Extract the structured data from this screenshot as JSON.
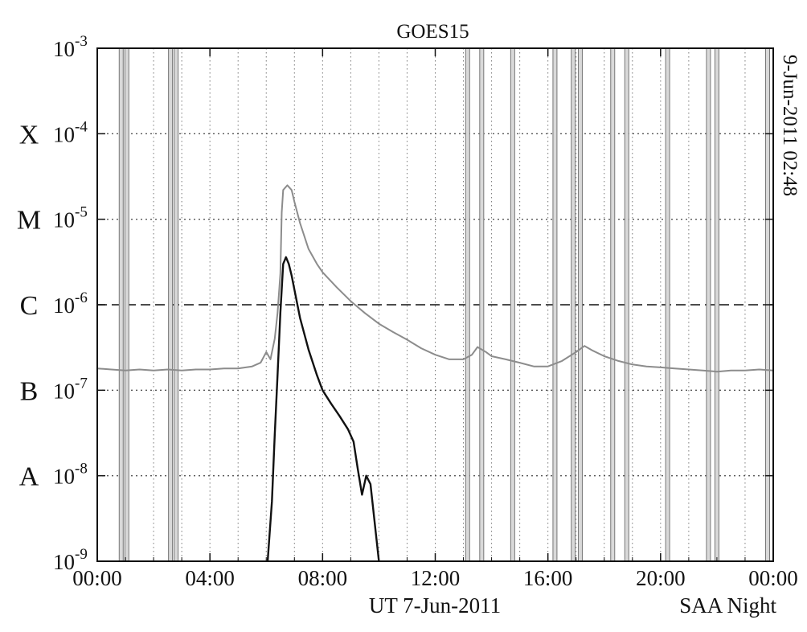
{
  "chart_data": {
    "type": "line",
    "title": "GOES15",
    "xlabel": "UT 7-Jun-2011",
    "footer_right": "SAA Night",
    "timestamp": "9-Jun-2011 02:48",
    "x_unit": "hours UT",
    "xlim": [
      0,
      24
    ],
    "ylim": [
      1e-09,
      0.001
    ],
    "yscale": "log",
    "grid": true,
    "x_ticks": [
      {
        "value": 0,
        "label": "00:00"
      },
      {
        "value": 4,
        "label": "04:00"
      },
      {
        "value": 8,
        "label": "08:00"
      },
      {
        "value": 12,
        "label": "12:00"
      },
      {
        "value": 16,
        "label": "16:00"
      },
      {
        "value": 20,
        "label": "20:00"
      },
      {
        "value": 24,
        "label": "00:00"
      }
    ],
    "y_ticks": [
      {
        "value": 0.001,
        "base": "10",
        "exp": "-3"
      },
      {
        "value": 0.0001,
        "base": "10",
        "exp": "-4"
      },
      {
        "value": 1e-05,
        "base": "10",
        "exp": "-5"
      },
      {
        "value": 1e-06,
        "base": "10",
        "exp": "-6"
      },
      {
        "value": 1e-07,
        "base": "10",
        "exp": "-7"
      },
      {
        "value": 1e-08,
        "base": "10",
        "exp": "-8"
      },
      {
        "value": 1e-09,
        "base": "10",
        "exp": "-9"
      }
    ],
    "flare_classes": [
      {
        "label": "X",
        "flux": 0.0001
      },
      {
        "label": "M",
        "flux": 1e-05
      },
      {
        "label": "C",
        "flux": 1e-06
      },
      {
        "label": "B",
        "flux": 1e-07
      },
      {
        "label": "A",
        "flux": 1e-08
      }
    ],
    "threshold_line": {
      "flux": 1e-06,
      "style": "dashed"
    },
    "data_gap_times": [
      0.85,
      1.05,
      2.6,
      2.8,
      13.15,
      13.65,
      14.75,
      16.25,
      16.9,
      17.15,
      18.3,
      18.8,
      20.25,
      21.7,
      22.0,
      23.8
    ],
    "series": [
      {
        "color": "#8c8c8c",
        "points": [
          [
            0,
            1.8e-07
          ],
          [
            0.5,
            1.75e-07
          ],
          [
            1,
            1.7e-07
          ],
          [
            1.5,
            1.75e-07
          ],
          [
            2,
            1.7e-07
          ],
          [
            2.5,
            1.75e-07
          ],
          [
            3,
            1.7e-07
          ],
          [
            3.5,
            1.75e-07
          ],
          [
            4,
            1.75e-07
          ],
          [
            4.5,
            1.8e-07
          ],
          [
            5,
            1.8e-07
          ],
          [
            5.5,
            1.9e-07
          ],
          [
            5.8,
            2.1e-07
          ],
          [
            6.0,
            2.8e-07
          ],
          [
            6.15,
            2.3e-07
          ],
          [
            6.3,
            4e-07
          ],
          [
            6.4,
            8e-07
          ],
          [
            6.5,
            2.3e-06
          ],
          [
            6.55,
            1.2e-05
          ],
          [
            6.6,
            2.2e-05
          ],
          [
            6.75,
            2.5e-05
          ],
          [
            6.9,
            2.2e-05
          ],
          [
            7.0,
            1.6e-05
          ],
          [
            7.2,
            9e-06
          ],
          [
            7.5,
            4.5e-06
          ],
          [
            7.8,
            3e-06
          ],
          [
            8.0,
            2.4e-06
          ],
          [
            8.5,
            1.6e-06
          ],
          [
            9.0,
            1.1e-06
          ],
          [
            9.5,
            8e-07
          ],
          [
            10.0,
            6e-07
          ],
          [
            10.5,
            4.8e-07
          ],
          [
            11.0,
            3.9e-07
          ],
          [
            11.5,
            3.1e-07
          ],
          [
            12.0,
            2.6e-07
          ],
          [
            12.5,
            2.3e-07
          ],
          [
            13.0,
            2.3e-07
          ],
          [
            13.3,
            2.6e-07
          ],
          [
            13.5,
            3.2e-07
          ],
          [
            13.8,
            2.8e-07
          ],
          [
            14.0,
            2.5e-07
          ],
          [
            14.5,
            2.3e-07
          ],
          [
            15.0,
            2.1e-07
          ],
          [
            15.5,
            1.9e-07
          ],
          [
            16.0,
            1.9e-07
          ],
          [
            16.5,
            2.2e-07
          ],
          [
            17.0,
            2.8e-07
          ],
          [
            17.3,
            3.3e-07
          ],
          [
            17.6,
            2.9e-07
          ],
          [
            18.0,
            2.5e-07
          ],
          [
            18.5,
            2.2e-07
          ],
          [
            19.0,
            2e-07
          ],
          [
            19.5,
            1.9e-07
          ],
          [
            20.0,
            1.85e-07
          ],
          [
            20.5,
            1.8e-07
          ],
          [
            21.0,
            1.75e-07
          ],
          [
            21.5,
            1.7e-07
          ],
          [
            22.0,
            1.65e-07
          ],
          [
            22.5,
            1.7e-07
          ],
          [
            23.0,
            1.7e-07
          ],
          [
            23.5,
            1.75e-07
          ],
          [
            24.0,
            1.7e-07
          ]
        ]
      },
      {
        "color": "#111111",
        "points": [
          [
            6.05,
            1e-09
          ],
          [
            6.2,
            5e-09
          ],
          [
            6.3,
            3e-08
          ],
          [
            6.4,
            1.5e-07
          ],
          [
            6.5,
            8e-07
          ],
          [
            6.6,
            3e-06
          ],
          [
            6.7,
            3.6e-06
          ],
          [
            6.8,
            3e-06
          ],
          [
            6.9,
            2.2e-06
          ],
          [
            7.0,
            1.5e-06
          ],
          [
            7.2,
            7e-07
          ],
          [
            7.5,
            3e-07
          ],
          [
            7.8,
            1.5e-07
          ],
          [
            8.0,
            1e-07
          ],
          [
            8.3,
            7e-08
          ],
          [
            8.6,
            5e-08
          ],
          [
            8.9,
            3.5e-08
          ],
          [
            9.1,
            2.5e-08
          ],
          [
            9.25,
            1.2e-08
          ],
          [
            9.4,
            6e-09
          ],
          [
            9.55,
            1e-08
          ],
          [
            9.7,
            8e-09
          ],
          [
            9.8,
            4e-09
          ],
          [
            9.9,
            2e-09
          ],
          [
            10.0,
            1e-09
          ]
        ]
      }
    ]
  }
}
